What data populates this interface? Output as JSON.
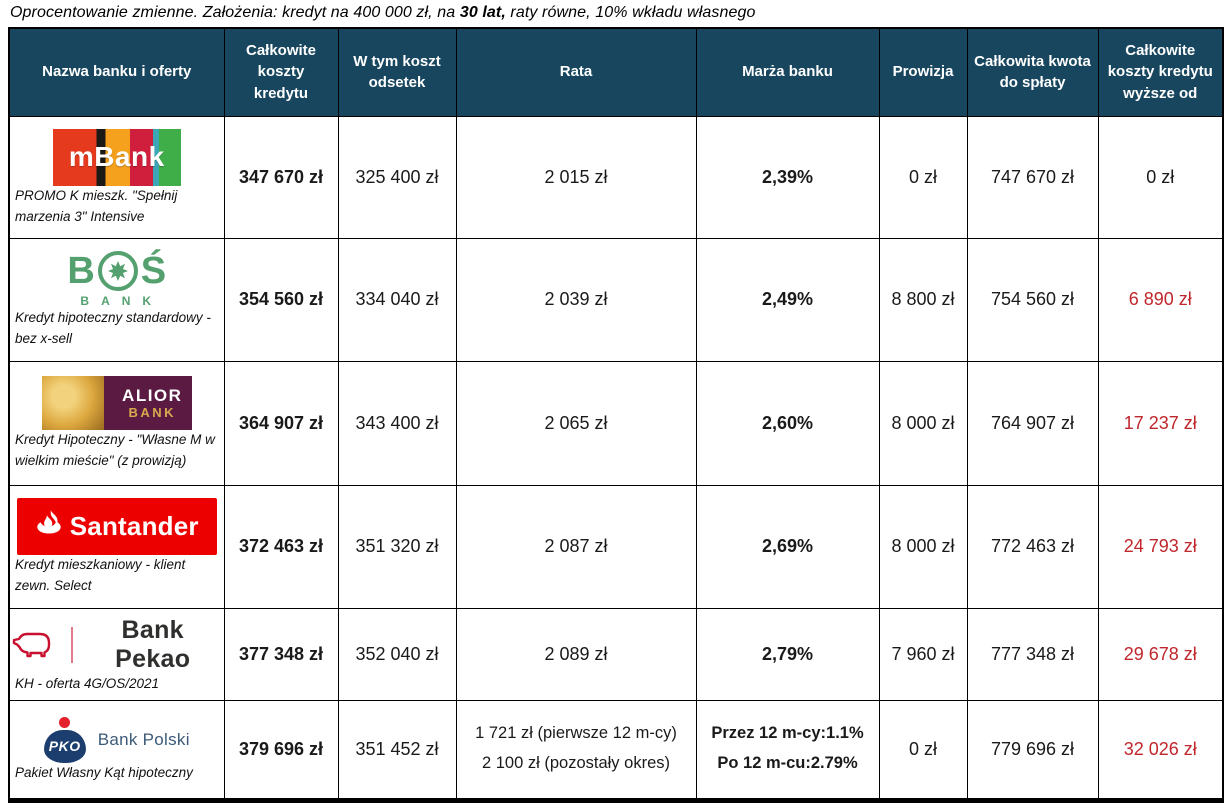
{
  "title": {
    "prefix": "Oprocentowanie zmienne. Założenia: kredyt na 400 000 zł, na ",
    "bold": "30 lat,",
    "suffix": " raty równe, 10% wkładu własnego"
  },
  "colors": {
    "header_bg": "#17465e",
    "header_text": "#ffffff",
    "negative": "#c0272d",
    "border": "#000000",
    "santander_red": "#ec0000",
    "pekao_red": "#c8102e",
    "pko_navy": "#1c3e6e",
    "bos_green": "#55a06f",
    "alior_maroon": "#5b1a42",
    "alior_gold": "#d8a94e"
  },
  "table": {
    "headers": [
      "Nazwa banku i oferty",
      "Całkowite koszty kredytu",
      "W tym koszt odsetek",
      "Rata",
      "Marża banku",
      "Prowizja",
      "Całkowita kwota do spłaty",
      "Całkowite koszty kredytu wyższe od"
    ],
    "rows": [
      {
        "bank": "mBank",
        "logo": {
          "type": "mbank",
          "text": "mBank"
        },
        "offer": "PROMO K mieszk. \"Spełnij marzenia 3\" Intensive",
        "total_cost": "347 670 zł",
        "interest_cost": "325 400 zł",
        "rata": [
          "2 015 zł"
        ],
        "marza": [
          "2,39%"
        ],
        "prowizja": "0 zł",
        "total_repayment": "747 670 zł",
        "higher_by": "0 zł",
        "higher_by_negative": false
      },
      {
        "bank": "BOŚ Bank",
        "logo": {
          "type": "bos",
          "text": "BOŚ",
          "subtext": "BANK"
        },
        "offer": "Kredyt hipoteczny standardowy - bez x-sell",
        "total_cost": "354 560 zł",
        "interest_cost": "334 040 zł",
        "rata": [
          "2 039 zł"
        ],
        "marza": [
          "2,49%"
        ],
        "prowizja": "8 800 zł",
        "total_repayment": "754 560 zł",
        "higher_by": "6 890 zł",
        "higher_by_negative": true
      },
      {
        "bank": "Alior Bank",
        "logo": {
          "type": "alior",
          "line1": "ALIOR",
          "line2": "BANK"
        },
        "offer": "Kredyt Hipoteczny - \"Własne M w wielkim mieście\" (z prowizją)",
        "total_cost": "364 907 zł",
        "interest_cost": "343 400 zł",
        "rata": [
          "2 065 zł"
        ],
        "marza": [
          "2,60%"
        ],
        "prowizja": "8 000 zł",
        "total_repayment": "764 907 zł",
        "higher_by": "17 237 zł",
        "higher_by_negative": true
      },
      {
        "bank": "Santander",
        "logo": {
          "type": "santander",
          "text": "Santander"
        },
        "offer": "Kredyt mieszkaniowy - klient zewn. Select",
        "total_cost": "372 463 zł",
        "interest_cost": "351 320 zł",
        "rata": [
          "2 087 zł"
        ],
        "marza": [
          "2,69%"
        ],
        "prowizja": "8 000 zł",
        "total_repayment": "772 463 zł",
        "higher_by": "24 793 zł",
        "higher_by_negative": true
      },
      {
        "bank": "Bank Pekao",
        "logo": {
          "type": "pekao",
          "text": "Bank Pekao"
        },
        "offer": "KH - oferta 4G/OS/2021",
        "total_cost": "377 348 zł",
        "interest_cost": "352 040 zł",
        "rata": [
          "2 089 zł"
        ],
        "marza": [
          "2,79%"
        ],
        "prowizja": "7 960 zł",
        "total_repayment": "777 348 zł",
        "higher_by": "29 678 zł",
        "higher_by_negative": true
      },
      {
        "bank": "PKO Bank Polski",
        "logo": {
          "type": "pko",
          "mark": "PKO",
          "text": "Bank Polski"
        },
        "offer": "Pakiet Własny Kąt hipoteczny",
        "total_cost": "379 696 zł",
        "interest_cost": "351 452 zł",
        "rata": [
          "1 721 zł (pierwsze 12 m-cy)",
          "2 100 zł (pozostały okres)"
        ],
        "marza": [
          "Przez 12 m-cy:1.1%",
          "Po 12 m-cu:2.79%"
        ],
        "prowizja": "0 zł",
        "total_repayment": "779 696 zł",
        "higher_by": "32 026 zł",
        "higher_by_negative": true
      }
    ]
  }
}
